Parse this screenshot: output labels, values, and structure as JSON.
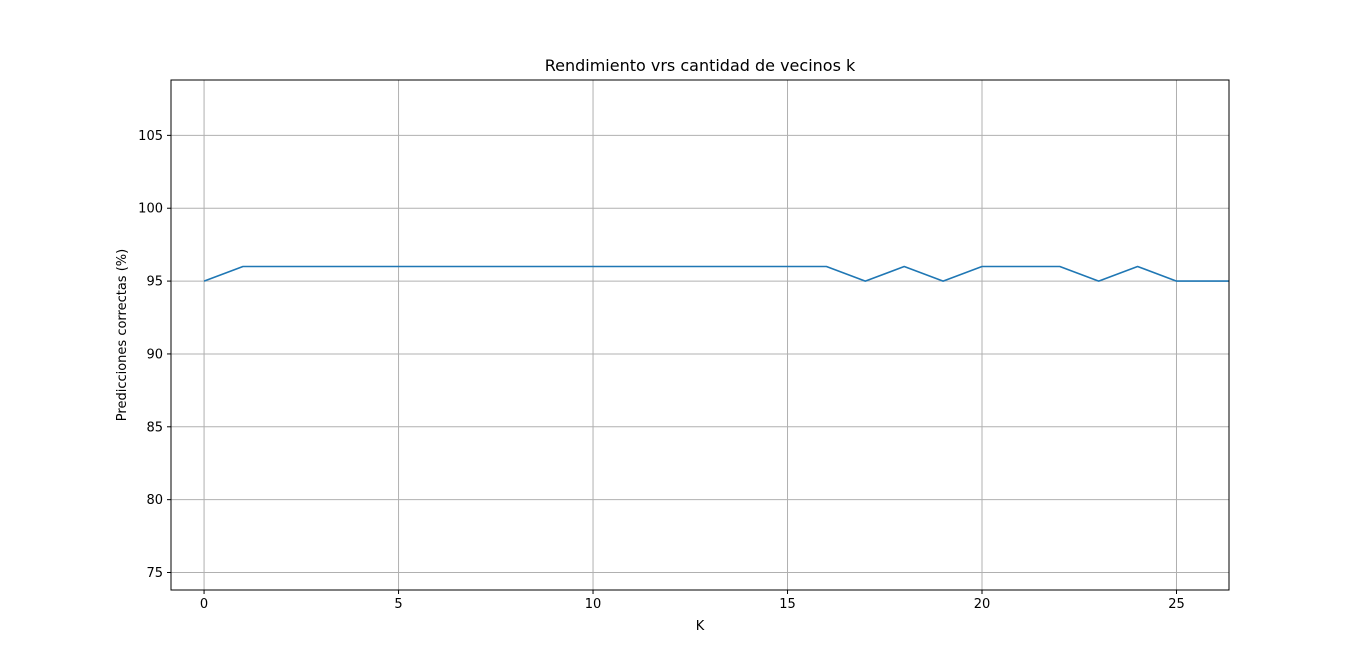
{
  "chart_data": {
    "type": "line",
    "title": "Rendimiento vrs cantidad de vecinos k",
    "xlabel": "K",
    "ylabel": "Predicciones correctas (%)",
    "xlim": [
      -0.85,
      26.35
    ],
    "ylim": [
      73.8,
      108.8
    ],
    "x_ticks": [
      0,
      5,
      10,
      15,
      20,
      25
    ],
    "y_ticks": [
      75,
      80,
      85,
      90,
      95,
      100,
      105
    ],
    "grid": true,
    "series": [
      {
        "color": "#1f77b4",
        "x": [
          0,
          1,
          2,
          3,
          4,
          5,
          6,
          7,
          8,
          9,
          10,
          11,
          12,
          13,
          14,
          15,
          16,
          17,
          18,
          19,
          20,
          21,
          22,
          23,
          24,
          25,
          26,
          27
        ],
        "y": [
          95,
          96,
          96,
          96,
          96,
          96,
          96,
          96,
          96,
          96,
          96,
          96,
          96,
          96,
          96,
          96,
          96,
          95,
          96,
          95,
          96,
          96,
          96,
          95,
          96,
          95,
          95,
          95
        ]
      }
    ]
  }
}
